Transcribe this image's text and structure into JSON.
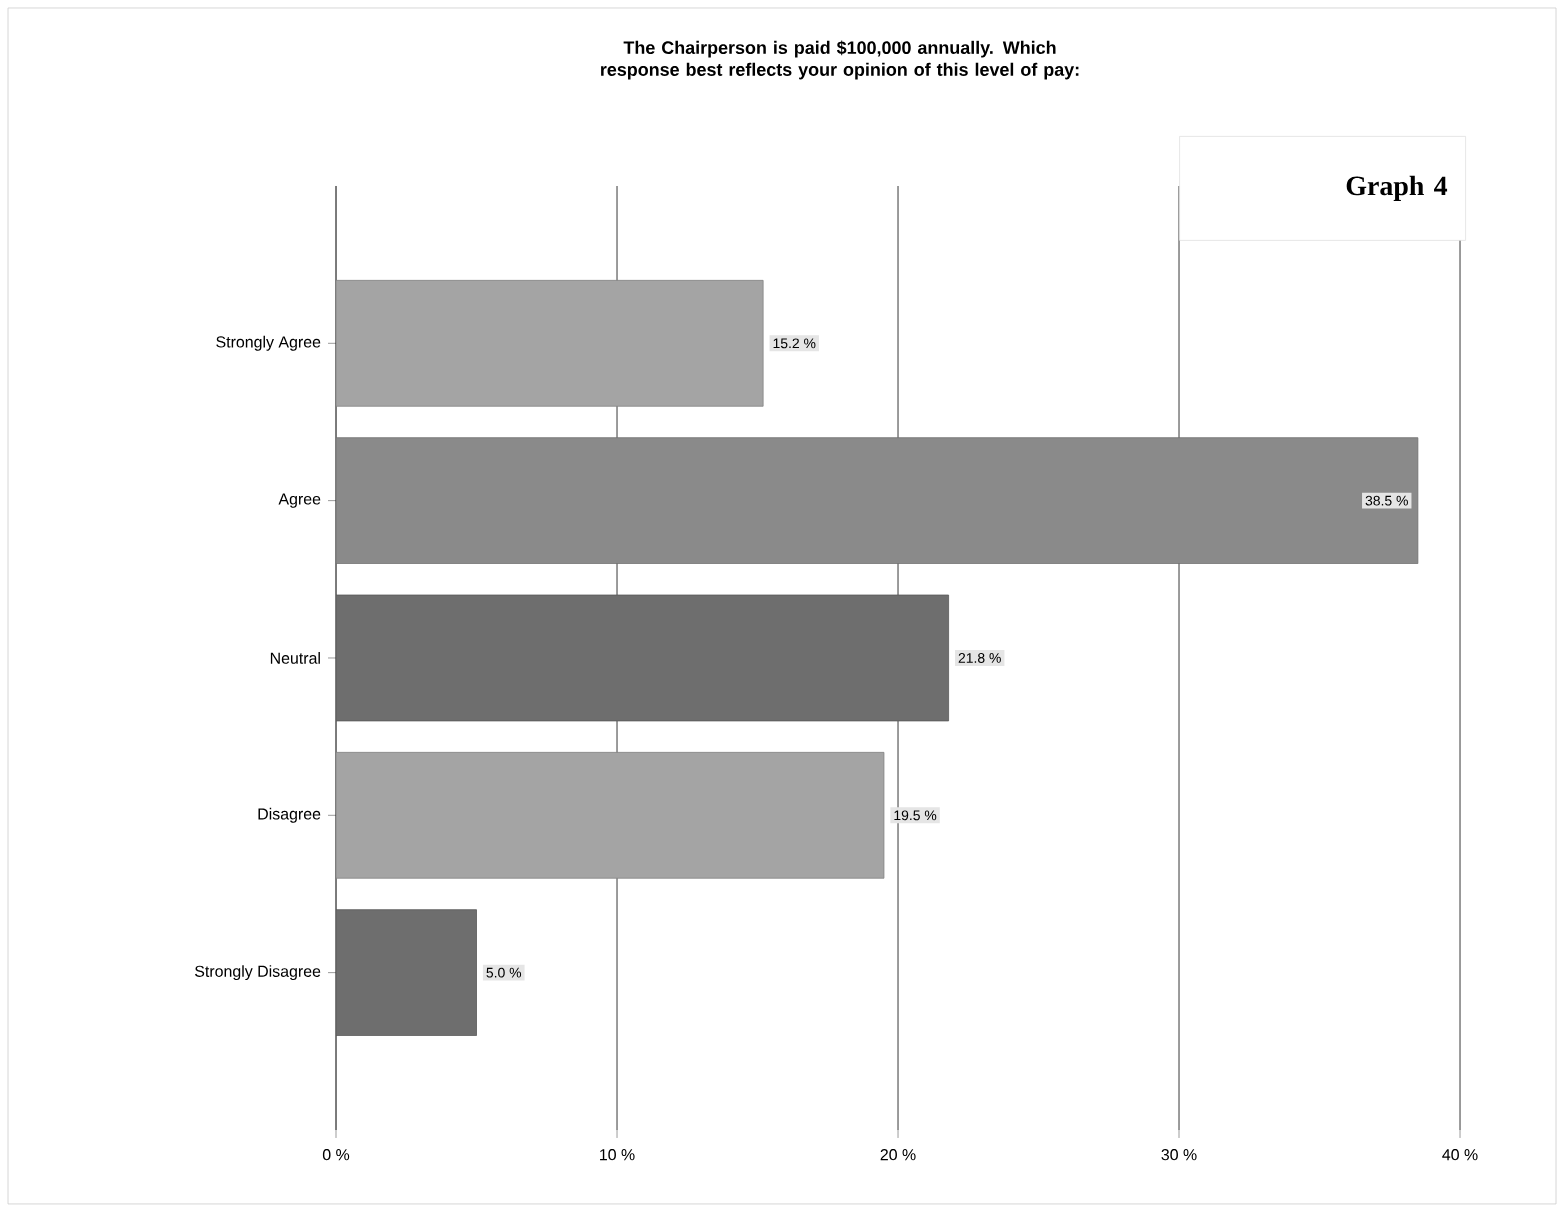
{
  "chart_data": {
    "type": "bar",
    "orientation": "horizontal",
    "title": "The Chairperson is paid $100,000 annually.  Which response best reflects your opinion of this level of pay:",
    "categories": [
      "Strongly Agree",
      "Agree",
      "Neutral",
      "Disagree",
      "Strongly Disagree"
    ],
    "values": [
      15.2,
      38.5,
      21.8,
      19.5,
      5.0
    ],
    "colors": [
      "#a4a4a4",
      "#8a8a8a",
      "#6e6e6e",
      "#a4a4a4",
      "#6e6e6e"
    ],
    "value_labels": [
      "15.2 %",
      "38.5 %",
      "21.8 %",
      "19.5 %",
      "5.0 %"
    ],
    "xlim": [
      0,
      40
    ],
    "xticks": [
      {
        "value": 0,
        "label": "0 %"
      },
      {
        "value": 10,
        "label": "10 %"
      },
      {
        "value": 20,
        "label": "20 %"
      },
      {
        "value": 30,
        "label": "30 %"
      },
      {
        "value": 40,
        "label": "40 %"
      }
    ],
    "grid": "x",
    "annotations": [
      "Graph 4"
    ]
  }
}
